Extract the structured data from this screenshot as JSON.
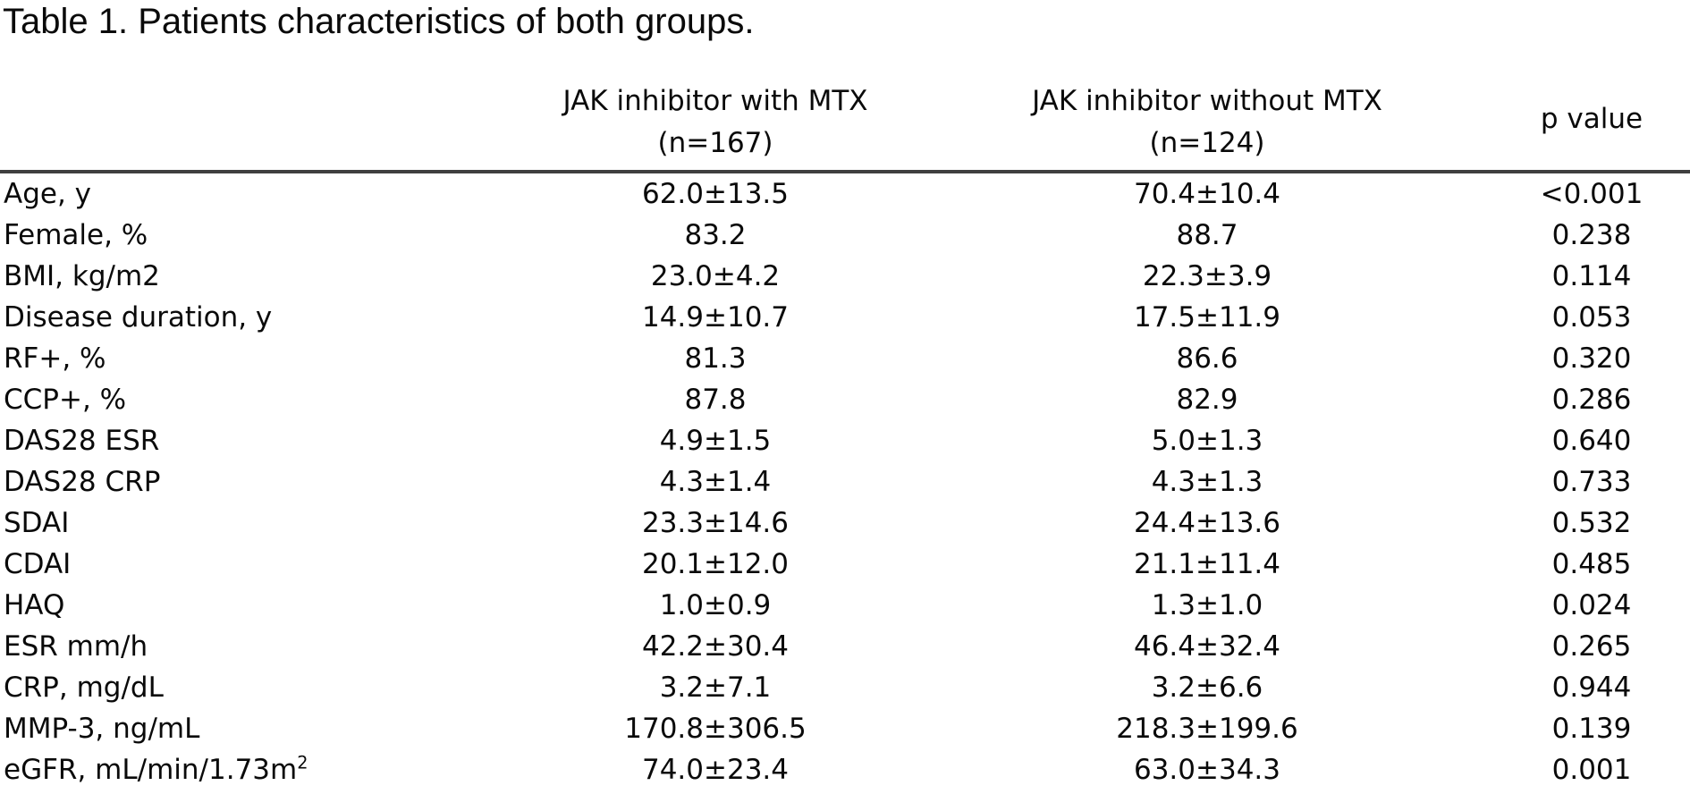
{
  "title": "Table 1. Patients characteristics of both groups.",
  "table": {
    "header": {
      "group1_line1": "JAK inhibitor with MTX",
      "group1_line2": "(n=167)",
      "group2_line1": "JAK inhibitor without MTX",
      "group2_line2": "(n=124)",
      "p_label": "p value"
    },
    "rows": [
      {
        "label": "Age, y",
        "label_sup": "",
        "with_mtx": "62.0±13.5",
        "without_mtx": "70.4±10.4",
        "p": "<0.001"
      },
      {
        "label": "Female, %",
        "label_sup": "",
        "with_mtx": "83.2",
        "without_mtx": "88.7",
        "p": "0.238"
      },
      {
        "label": "BMI, kg/m2",
        "label_sup": "",
        "with_mtx": "23.0±4.2",
        "without_mtx": "22.3±3.9",
        "p": "0.114"
      },
      {
        "label": "Disease duration, y",
        "label_sup": "",
        "with_mtx": "14.9±10.7",
        "without_mtx": "17.5±11.9",
        "p": "0.053"
      },
      {
        "label": "RF+, %",
        "label_sup": "",
        "with_mtx": "81.3",
        "without_mtx": "86.6",
        "p": "0.320"
      },
      {
        "label": "CCP+, %",
        "label_sup": "",
        "with_mtx": "87.8",
        "without_mtx": "82.9",
        "p": "0.286"
      },
      {
        "label": "DAS28 ESR",
        "label_sup": "",
        "with_mtx": "4.9±1.5",
        "without_mtx": "5.0±1.3",
        "p": "0.640"
      },
      {
        "label": "DAS28 CRP",
        "label_sup": "",
        "with_mtx": "4.3±1.4",
        "without_mtx": "4.3±1.3",
        "p": "0.733"
      },
      {
        "label": "SDAI",
        "label_sup": "",
        "with_mtx": "23.3±14.6",
        "without_mtx": "24.4±13.6",
        "p": "0.532"
      },
      {
        "label": "CDAI",
        "label_sup": "",
        "with_mtx": "20.1±12.0",
        "without_mtx": "21.1±11.4",
        "p": "0.485"
      },
      {
        "label": "HAQ",
        "label_sup": "",
        "with_mtx": "1.0±0.9",
        "without_mtx": "1.3±1.0",
        "p": "0.024"
      },
      {
        "label": "ESR mm/h",
        "label_sup": "",
        "with_mtx": "42.2±30.4",
        "without_mtx": "46.4±32.4",
        "p": "0.265"
      },
      {
        "label": "CRP, mg/dL",
        "label_sup": "",
        "with_mtx": "3.2±7.1",
        "without_mtx": "3.2±6.6",
        "p": "0.944"
      },
      {
        "label": "MMP-3, ng/mL",
        "label_sup": "",
        "with_mtx": "170.8±306.5",
        "without_mtx": "218.3±199.6",
        "p": "0.139"
      },
      {
        "label": "eGFR, mL/min/1.73m",
        "label_sup": "2",
        "with_mtx": "74.0±23.4",
        "without_mtx": "63.0±34.3",
        "p": "0.001"
      }
    ]
  }
}
